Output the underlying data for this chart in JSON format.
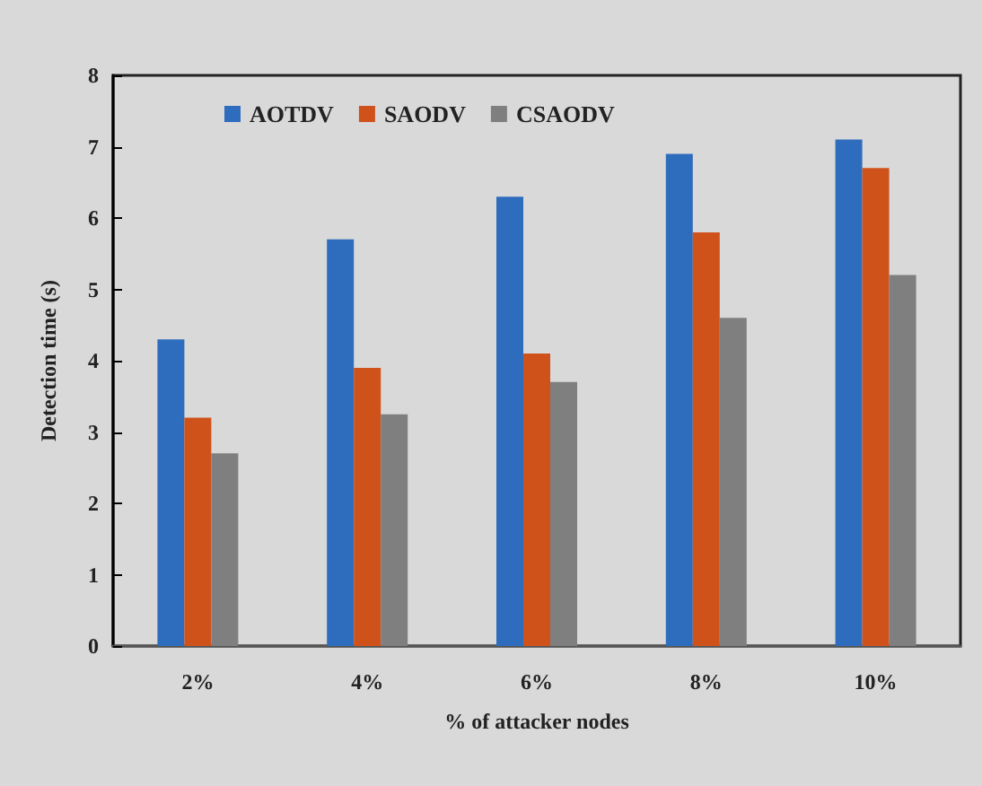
{
  "chart_data": {
    "type": "bar",
    "xlabel": "% of attacker nodes",
    "ylabel": "Detection time (s)",
    "categories": [
      "2%",
      "4%",
      "6%",
      "8%",
      "10%"
    ],
    "series": [
      {
        "name": "AOTDV",
        "color": "#2e6dbd",
        "values": [
          4.3,
          5.7,
          6.3,
          6.9,
          7.1
        ]
      },
      {
        "name": "SAODV",
        "color": "#d0521b",
        "values": [
          3.2,
          3.9,
          4.1,
          5.8,
          6.7
        ]
      },
      {
        "name": "CSAODV",
        "color": "#7f7f7f",
        "values": [
          2.7,
          3.25,
          3.7,
          4.6,
          5.2
        ]
      }
    ],
    "ylim": [
      0,
      8
    ],
    "yticks": [
      0,
      1,
      2,
      3,
      4,
      5,
      6,
      7,
      8
    ],
    "grid": false,
    "legend": "top left"
  }
}
